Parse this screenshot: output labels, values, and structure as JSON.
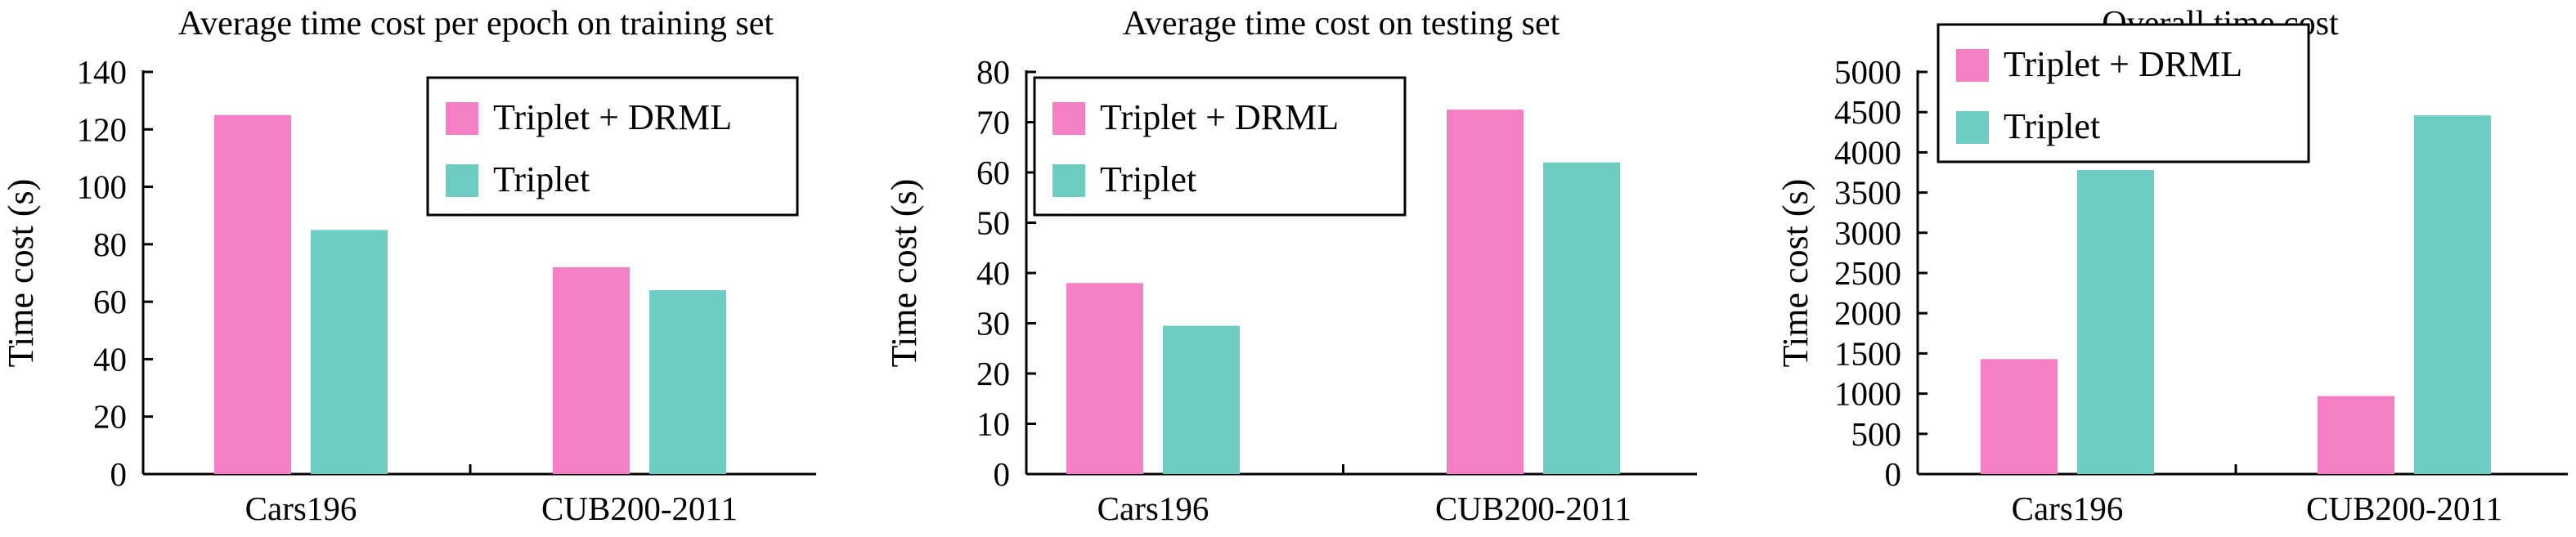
{
  "colors": {
    "series_a": "#f47fc4",
    "series_b": "#6ecdc1",
    "axis": "#000000"
  },
  "chart_data": [
    {
      "type": "bar",
      "title": "Average time cost per epoch on training set",
      "xlabel": "",
      "ylabel": "Time cost (s)",
      "categories": [
        "Cars196",
        "CUB200-2011"
      ],
      "ylim": [
        0,
        140
      ],
      "yticks": [
        0,
        20,
        40,
        60,
        80,
        100,
        120,
        140
      ],
      "legend_position": "top-right",
      "series": [
        {
          "name": "Triplet + DRML",
          "values": [
            125,
            72
          ]
        },
        {
          "name": "Triplet",
          "values": [
            85,
            64
          ]
        }
      ]
    },
    {
      "type": "bar",
      "title": "Average time cost on testing set",
      "xlabel": "",
      "ylabel": "Time cost (s)",
      "categories": [
        "Cars196",
        "CUB200-2011"
      ],
      "ylim": [
        0,
        80
      ],
      "yticks": [
        0,
        10,
        20,
        30,
        40,
        50,
        60,
        70,
        80
      ],
      "legend_position": "top-left",
      "series": [
        {
          "name": "Triplet + DRML",
          "values": [
            38,
            72.5
          ]
        },
        {
          "name": "Triplet",
          "values": [
            29.5,
            62
          ]
        }
      ]
    },
    {
      "type": "bar",
      "title": "Overall time cost",
      "xlabel": "",
      "ylabel": "Time cost (s)",
      "categories": [
        "Cars196",
        "CUB200-2011"
      ],
      "ylim": [
        0,
        5000
      ],
      "yticks": [
        0,
        500,
        1000,
        1500,
        2000,
        2500,
        3000,
        3500,
        4000,
        4500,
        5000
      ],
      "legend_position": "top-left",
      "series": [
        {
          "name": "Triplet + DRML",
          "values": [
            1430,
            970
          ]
        },
        {
          "name": "Triplet",
          "values": [
            3780,
            4460
          ]
        }
      ]
    }
  ]
}
